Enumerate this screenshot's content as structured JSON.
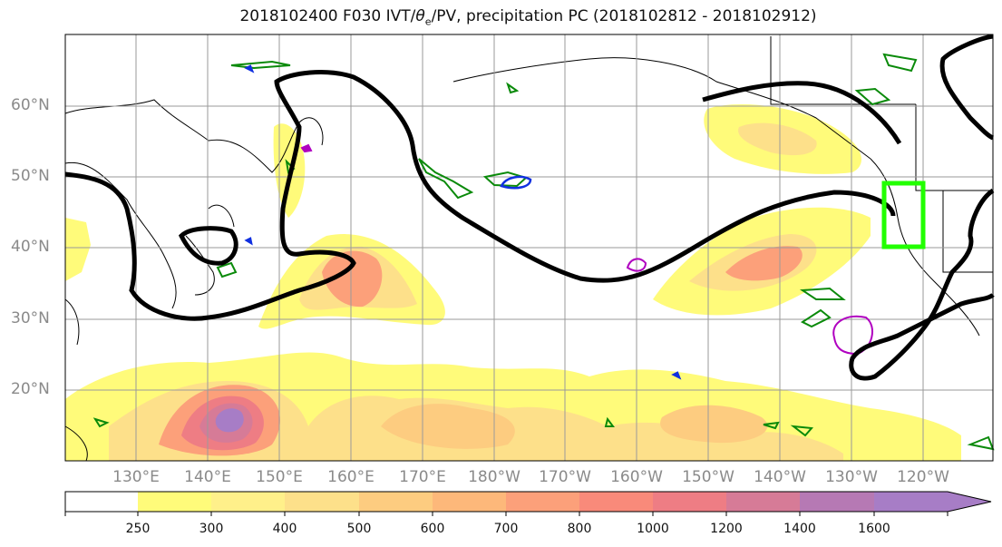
{
  "title_prefix": "2018102400 F030 IVT/",
  "title_theta": "θ",
  "title_sub": "e",
  "title_suffix": "/PV, precipitation PC (2018102812 - 2018102912)",
  "lat_labels": [
    "60°N",
    "50°N",
    "40°N",
    "30°N",
    "20°N"
  ],
  "lon_labels": [
    "130°E",
    "140°E",
    "150°E",
    "160°E",
    "170°E",
    "180°W",
    "170°W",
    "160°W",
    "150°W",
    "140°W",
    "130°W",
    "120°W"
  ],
  "colorbar": {
    "levels": [
      "250",
      "300",
      "400",
      "500",
      "600",
      "700",
      "800",
      "1000",
      "1200",
      "1400",
      "1600"
    ],
    "colors": [
      "#ffffff",
      "#fffb7a",
      "#fff08a",
      "#fde08a",
      "#fdcc80",
      "#fdb87a",
      "#fca07a",
      "#f98a7a",
      "#ee7d84",
      "#d67b97",
      "#b679b4",
      "#a77dc6"
    ]
  },
  "colors": {
    "land_line": "#000000",
    "pv_contour": "#000000",
    "theta_contour": "#0a8a0a",
    "ivt_blue": "#1030e0",
    "magenta": "#b000c0",
    "target_box": "#22ff00"
  }
}
